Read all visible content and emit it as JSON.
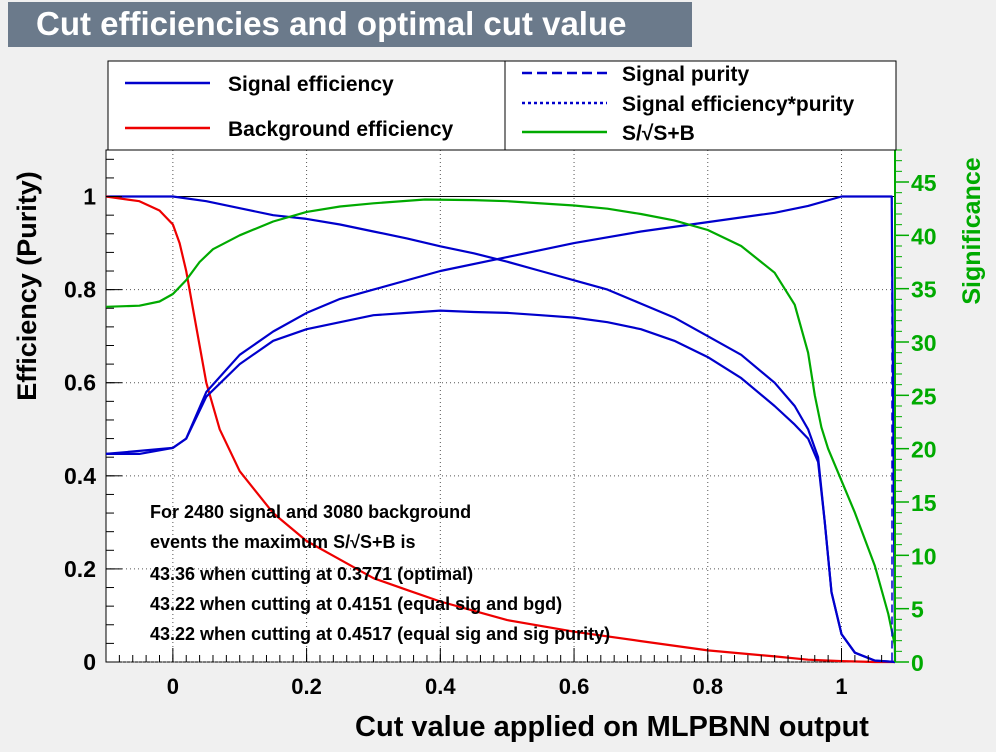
{
  "title": "Cut efficiencies and optimal cut value",
  "colors": {
    "signal": "#0000cc",
    "background": "#ee0000",
    "significance": "#00aa00",
    "title_bg": "#6b7a8b",
    "canvas_bg": "#f0f0f0",
    "plot_bg": "#ffffff"
  },
  "legend": {
    "left": [
      {
        "label": "Signal efficiency",
        "style": "solid",
        "color": "#0000cc"
      },
      {
        "label": "Background efficiency",
        "style": "solid",
        "color": "#ee0000"
      }
    ],
    "right": [
      {
        "label": "Signal purity",
        "style": "dashed",
        "color": "#0000cc"
      },
      {
        "label": "Signal efficiency*purity",
        "style": "dotted",
        "color": "#0000cc"
      },
      {
        "label": "S/√S+B",
        "style": "solid",
        "color": "#00aa00"
      }
    ]
  },
  "annotation": [
    "For 2480 signal and 3080 background",
    "events the maximum S/√S+B is",
    "43.36 when cutting at 0.3771 (optimal)",
    "43.22 when cutting at 0.4151 (equal sig and bgd)",
    "43.22 when cutting at 0.4517 (equal sig and sig purity)"
  ],
  "chart_data": {
    "type": "line",
    "title": "Cut efficiencies and optimal cut value",
    "xlabel": "Cut value applied on MLPBNN output",
    "ylabel": "Efficiency (Purity)",
    "y2label": "Significance",
    "xlim": [
      -0.1,
      1.08
    ],
    "ylim": [
      0,
      1.1
    ],
    "y2lim": [
      0,
      48
    ],
    "grid": true,
    "legend_position": "top",
    "xticks": [
      "0",
      "0.2",
      "0.4",
      "0.6",
      "0.8",
      "1"
    ],
    "yticks": [
      "0",
      "0.2",
      "0.4",
      "0.6",
      "0.8",
      "1"
    ],
    "y2ticks": [
      "0",
      "5",
      "10",
      "15",
      "20",
      "25",
      "30",
      "35",
      "40",
      "45"
    ],
    "series": [
      {
        "name": "Signal efficiency",
        "axis": "left",
        "x": [
          -0.1,
          0,
          0.05,
          0.1,
          0.15,
          0.2,
          0.25,
          0.3,
          0.35,
          0.4,
          0.45,
          0.5,
          0.55,
          0.6,
          0.65,
          0.7,
          0.75,
          0.8,
          0.85,
          0.9,
          0.93,
          0.95,
          0.965,
          0.975,
          0.985,
          1.0,
          1.02,
          1.05,
          1.08
        ],
        "y": [
          1.0,
          1.0,
          0.99,
          0.975,
          0.96,
          0.952,
          0.94,
          0.925,
          0.91,
          0.893,
          0.878,
          0.86,
          0.84,
          0.82,
          0.8,
          0.77,
          0.74,
          0.7,
          0.66,
          0.6,
          0.55,
          0.5,
          0.44,
          0.3,
          0.15,
          0.06,
          0.02,
          0.003,
          0
        ]
      },
      {
        "name": "Background efficiency",
        "axis": "left",
        "x": [
          -0.1,
          -0.05,
          -0.02,
          0,
          0.01,
          0.02,
          0.03,
          0.04,
          0.05,
          0.07,
          0.1,
          0.15,
          0.2,
          0.25,
          0.3,
          0.35,
          0.4,
          0.45,
          0.5,
          0.6,
          0.7,
          0.8,
          0.9,
          0.95,
          1.0,
          1.05,
          1.08
        ],
        "y": [
          1.0,
          0.99,
          0.97,
          0.94,
          0.9,
          0.84,
          0.76,
          0.68,
          0.6,
          0.5,
          0.41,
          0.32,
          0.26,
          0.22,
          0.18,
          0.155,
          0.13,
          0.11,
          0.09,
          0.065,
          0.045,
          0.025,
          0.012,
          0.005,
          0.002,
          0,
          0
        ]
      },
      {
        "name": "Signal purity",
        "axis": "left",
        "x": [
          -0.1,
          -0.05,
          0,
          0.02,
          0.05,
          0.1,
          0.15,
          0.2,
          0.25,
          0.3,
          0.4,
          0.5,
          0.6,
          0.7,
          0.8,
          0.9,
          0.95,
          1.0,
          1.05,
          1.075,
          1.08
        ],
        "y": [
          0.447,
          0.447,
          0.46,
          0.48,
          0.58,
          0.66,
          0.71,
          0.75,
          0.78,
          0.8,
          0.84,
          0.87,
          0.9,
          0.925,
          0.945,
          0.965,
          0.98,
          1.0,
          1.0,
          1.0,
          0
        ]
      },
      {
        "name": "Signal efficiency*purity",
        "axis": "left",
        "x": [
          -0.1,
          0,
          0.02,
          0.05,
          0.1,
          0.15,
          0.2,
          0.25,
          0.3,
          0.35,
          0.4,
          0.45,
          0.5,
          0.55,
          0.6,
          0.65,
          0.7,
          0.75,
          0.8,
          0.85,
          0.9,
          0.93,
          0.95,
          0.965,
          0.975,
          0.985,
          1.0,
          1.02,
          1.05,
          1.08
        ],
        "y": [
          0.447,
          0.46,
          0.48,
          0.57,
          0.64,
          0.69,
          0.715,
          0.73,
          0.745,
          0.75,
          0.755,
          0.752,
          0.75,
          0.745,
          0.74,
          0.73,
          0.715,
          0.69,
          0.655,
          0.61,
          0.55,
          0.51,
          0.48,
          0.43,
          0.3,
          0.15,
          0.06,
          0.02,
          0.003,
          0
        ]
      },
      {
        "name": "S/√S+B",
        "axis": "right",
        "x": [
          -0.1,
          -0.05,
          -0.02,
          0,
          0.02,
          0.04,
          0.06,
          0.1,
          0.15,
          0.2,
          0.25,
          0.3,
          0.3771,
          0.45,
          0.5,
          0.6,
          0.65,
          0.7,
          0.75,
          0.8,
          0.85,
          0.9,
          0.93,
          0.95,
          0.96,
          0.97,
          0.98,
          0.99,
          1.0,
          1.02,
          1.05,
          1.07,
          1.08
        ],
        "y": [
          33.3,
          33.4,
          33.8,
          34.5,
          35.8,
          37.5,
          38.7,
          40.0,
          41.3,
          42.2,
          42.7,
          43.0,
          43.36,
          43.3,
          43.2,
          42.8,
          42.5,
          42.0,
          41.4,
          40.5,
          39.0,
          36.5,
          33.5,
          29.0,
          25.0,
          22.0,
          20.0,
          18.5,
          17.0,
          14.0,
          9.0,
          4.5,
          1.5
        ]
      }
    ]
  }
}
